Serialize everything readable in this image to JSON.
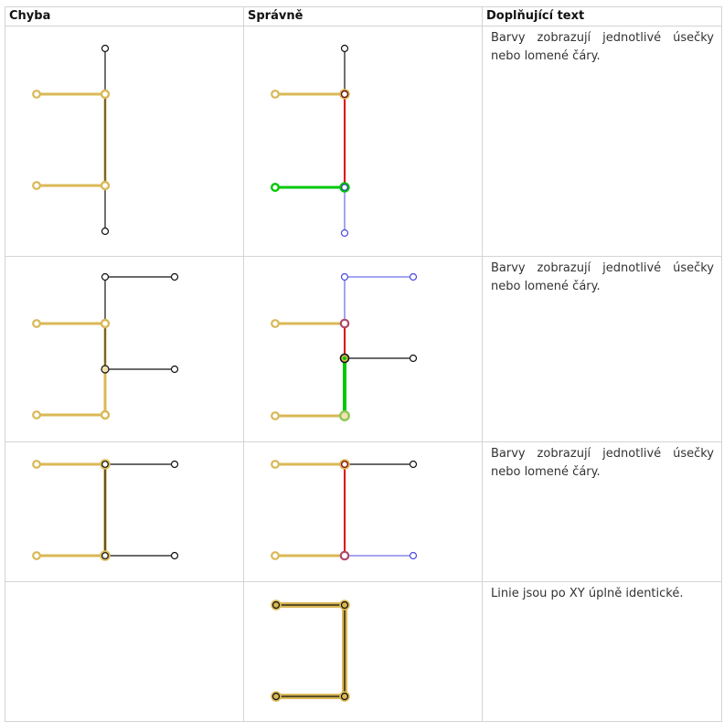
{
  "headers": {
    "col1": "Chyba",
    "col2": "Správně",
    "col3": "Doplňující text"
  },
  "rows": [
    {
      "text": "Barvy zobrazují jednotlivé úsečky nebo lomené čáry."
    },
    {
      "text": "Barvy zobrazují jednotlivé úsečky nebo lomené čáry."
    },
    {
      "text": "Barvy zobrazují jednotlivé úsečky nebo lomené čáry."
    },
    {
      "text": "Linie jsou po XY úplně identické."
    }
  ],
  "colors": {
    "gold": "#dab856",
    "black": "#111111",
    "red": "#e00000",
    "green": "#00c800",
    "blue": "#4a4ae0",
    "border": "#d4d4d4"
  }
}
